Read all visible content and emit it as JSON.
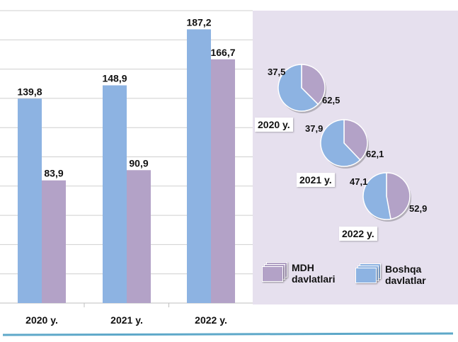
{
  "chart_data": [
    {
      "type": "bar",
      "categories": [
        "2020 y.",
        "2021 y.",
        "2022 y."
      ],
      "series": [
        {
          "values": [
            139.8,
            148.9,
            187.2
          ],
          "labels": [
            "139,8",
            "148,9",
            "187,2"
          ],
          "color": "#8db3e2"
        },
        {
          "values": [
            83.9,
            90.9,
            166.7
          ],
          "labels": [
            "83,9",
            "90,9",
            "166,7"
          ],
          "color": "#b3a2c7"
        }
      ],
      "ylim": [
        0,
        200
      ],
      "grid": true
    },
    {
      "type": "pie",
      "title": "2020 y.",
      "slices": [
        {
          "name": "MDH davlatlari",
          "value": 37.5,
          "label": "37,5",
          "color": "#b3a2c7"
        },
        {
          "name": "Boshqa davlatlar",
          "value": 62.5,
          "label": "62,5",
          "color": "#8db3e2"
        }
      ]
    },
    {
      "type": "pie",
      "title": "2021 y.",
      "slices": [
        {
          "name": "MDH davlatlari",
          "value": 37.9,
          "label": "37,9",
          "color": "#b3a2c7"
        },
        {
          "name": "Boshqa davlatlar",
          "value": 62.1,
          "label": "62,1",
          "color": "#8db3e2"
        }
      ]
    },
    {
      "type": "pie",
      "title": "2022 y.",
      "slices": [
        {
          "name": "MDH davlatlari",
          "value": 47.1,
          "label": "47,1",
          "color": "#b3a2c7"
        },
        {
          "name": "Boshqa davlatlar",
          "value": 52.9,
          "label": "52,9",
          "color": "#8db3e2"
        }
      ]
    }
  ],
  "legend": {
    "items": [
      {
        "line1": "MDH",
        "line2": "davlatlari",
        "color": "#b3a2c7"
      },
      {
        "line1": "Boshqa",
        "line2": "davlatlar",
        "color": "#8db3e2"
      }
    ]
  }
}
